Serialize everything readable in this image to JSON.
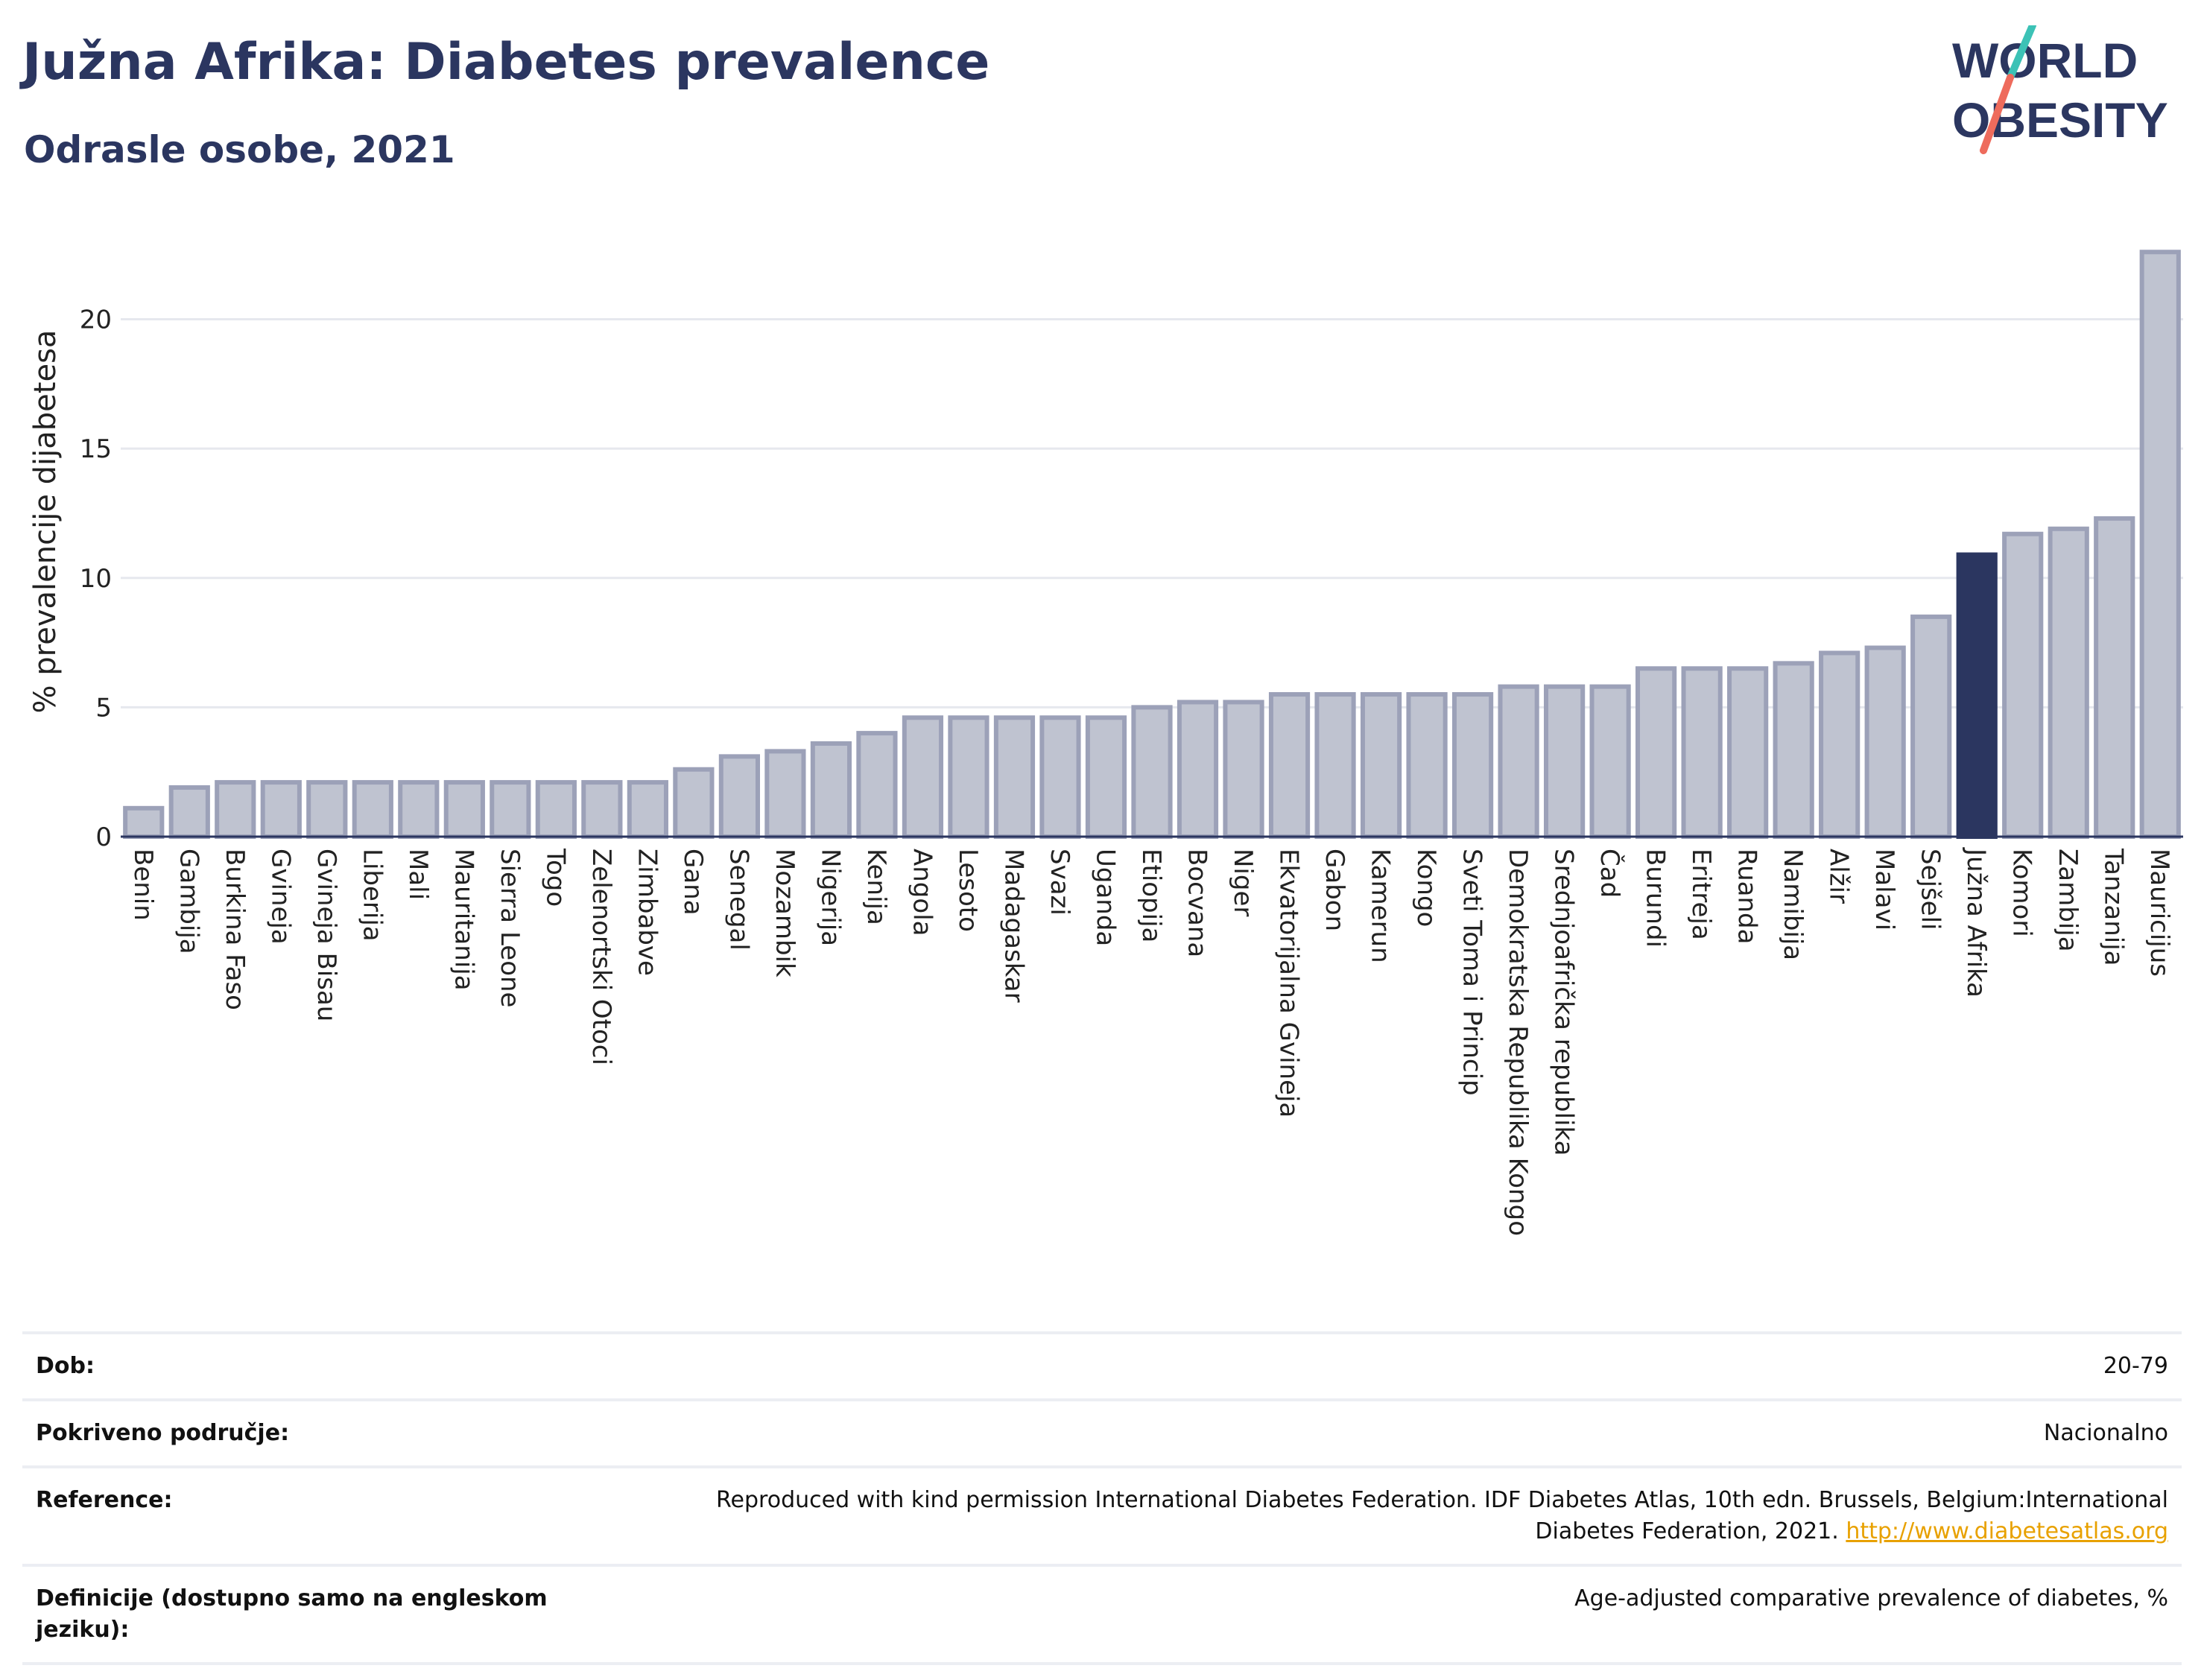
{
  "header": {
    "title": "Južna Afrika: Diabetes prevalence",
    "subtitle": "Odrasle osobe, 2021"
  },
  "logo": {
    "line1": "WORLD",
    "line2": "OBESITY"
  },
  "colors": {
    "highlight": "#2b3660",
    "bar_fill": "#bfc3d0",
    "bar_stroke": "#9ca1b8",
    "grid": "#e6e8ee",
    "link": "#e8a100"
  },
  "chart_data": {
    "type": "bar",
    "ylabel": "% prevalencije dijabetesa",
    "ylim": [
      0,
      23.5
    ],
    "yticks": [
      0,
      5,
      10,
      15,
      20
    ],
    "grid": true,
    "highlight": "Južna Afrika",
    "categories": [
      "Benin",
      "Gambija",
      "Burkina Faso",
      "Gvineja",
      "Gvineja Bisau",
      "Liberija",
      "Mali",
      "Mauritanija",
      "Sierra Leone",
      "Togo",
      "Zelenortski Otoci",
      "Zimbabve",
      "Gana",
      "Senegal",
      "Mozambik",
      "Nigerija",
      "Kenija",
      "Angola",
      "Lesoto",
      "Madagaskar",
      "Svazi",
      "Uganda",
      "Etiopija",
      "Bocvana",
      "Niger",
      "Ekvatorijalna Gvineja",
      "Gabon",
      "Kamerun",
      "Kongo",
      "Sveti Toma i Princip",
      "Demokratska Republika Kongo",
      "Srednjoafrička republika",
      "Čad",
      "Burundi",
      "Eritreja",
      "Ruanda",
      "Namibija",
      "Alžir",
      "Malavi",
      "Sejšeli",
      "Južna Afrika",
      "Komori",
      "Zambija",
      "Tanzanija",
      "Mauricijus"
    ],
    "values": [
      1.1,
      1.9,
      2.1,
      2.1,
      2.1,
      2.1,
      2.1,
      2.1,
      2.1,
      2.1,
      2.1,
      2.1,
      2.6,
      3.1,
      3.3,
      3.6,
      4.0,
      4.6,
      4.6,
      4.6,
      4.6,
      4.6,
      5.0,
      5.2,
      5.2,
      5.5,
      5.5,
      5.5,
      5.5,
      5.5,
      5.8,
      5.8,
      5.8,
      6.5,
      6.5,
      6.5,
      6.7,
      7.1,
      7.3,
      8.5,
      10.9,
      11.7,
      11.9,
      12.3,
      22.6
    ]
  },
  "meta": {
    "age_label": "Dob:",
    "age_value": "20-79",
    "coverage_label": "Pokriveno područje:",
    "coverage_value": "Nacionalno",
    "reference_label": "Reference:",
    "reference_text": "Reproduced with kind permission International Diabetes Federation.  IDF Diabetes Atlas, 10th edn. Brussels, Belgium:International Diabetes Federation, 2021. ",
    "reference_link": "http://www.diabetesatlas.org",
    "definition_label": "Definicije (dostupno samo na engleskom jeziku):",
    "definition_value": "Age-adjusted comparative prevalence of diabetes, %"
  }
}
